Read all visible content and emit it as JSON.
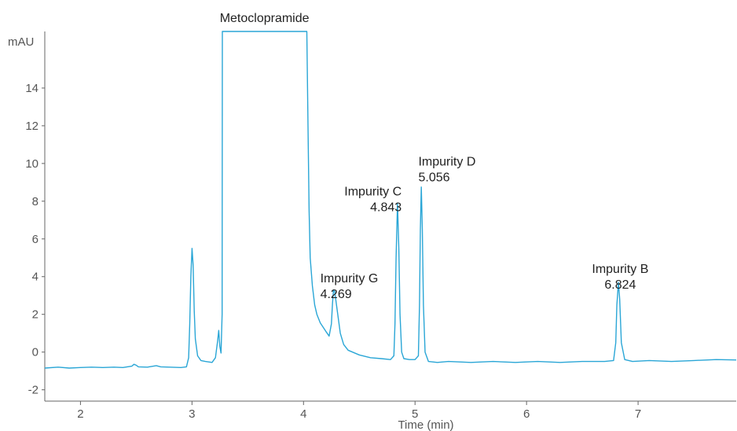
{
  "chart_data": {
    "type": "line",
    "title": "",
    "xlabel": "Time (min)",
    "ylabel": "mAU",
    "xlim": [
      1.68,
      7.88
    ],
    "ylim": [
      -2.6,
      17
    ],
    "x_ticks": [
      2,
      3,
      4,
      5,
      6,
      7
    ],
    "y_ticks": [
      -2,
      0,
      2,
      4,
      6,
      8,
      10,
      12,
      14
    ],
    "grid": false,
    "line_color": "#2aa6d6",
    "series": [
      {
        "points": [
          [
            1.68,
            -0.85
          ],
          [
            1.8,
            -0.8
          ],
          [
            1.9,
            -0.85
          ],
          [
            2.0,
            -0.82
          ],
          [
            2.1,
            -0.8
          ],
          [
            2.2,
            -0.82
          ],
          [
            2.3,
            -0.8
          ],
          [
            2.38,
            -0.82
          ],
          [
            2.42,
            -0.78
          ],
          [
            2.46,
            -0.75
          ],
          [
            2.48,
            -0.65
          ],
          [
            2.5,
            -0.7
          ],
          [
            2.52,
            -0.78
          ],
          [
            2.6,
            -0.8
          ],
          [
            2.68,
            -0.72
          ],
          [
            2.72,
            -0.78
          ],
          [
            2.8,
            -0.8
          ],
          [
            2.9,
            -0.82
          ],
          [
            2.95,
            -0.78
          ],
          [
            2.97,
            -0.3
          ],
          [
            2.98,
            1.5
          ],
          [
            2.99,
            4.0
          ],
          [
            3.0,
            5.5
          ],
          [
            3.01,
            4.6
          ],
          [
            3.02,
            2.2
          ],
          [
            3.03,
            0.7
          ],
          [
            3.05,
            -0.2
          ],
          [
            3.08,
            -0.45
          ],
          [
            3.12,
            -0.5
          ],
          [
            3.18,
            -0.55
          ],
          [
            3.21,
            -0.3
          ],
          [
            3.23,
            0.6
          ],
          [
            3.24,
            1.15
          ],
          [
            3.25,
            0.3
          ],
          [
            3.26,
            -0.05
          ],
          [
            3.27,
            2.0
          ],
          [
            3.272,
            17.0
          ],
          [
            3.82,
            17.0
          ],
          [
            3.85,
            17.0
          ],
          [
            4.03,
            17.0
          ],
          [
            4.04,
            12.0
          ],
          [
            4.05,
            7.5
          ],
          [
            4.06,
            5.0
          ],
          [
            4.08,
            3.5
          ],
          [
            4.1,
            2.5
          ],
          [
            4.12,
            2.0
          ],
          [
            4.15,
            1.55
          ],
          [
            4.2,
            1.1
          ],
          [
            4.23,
            0.85
          ],
          [
            4.25,
            1.5
          ],
          [
            4.26,
            2.6
          ],
          [
            4.269,
            3.3
          ],
          [
            4.28,
            3.2
          ],
          [
            4.3,
            2.3
          ],
          [
            4.33,
            1.0
          ],
          [
            4.36,
            0.4
          ],
          [
            4.4,
            0.1
          ],
          [
            4.5,
            -0.15
          ],
          [
            4.6,
            -0.3
          ],
          [
            4.7,
            -0.35
          ],
          [
            4.78,
            -0.4
          ],
          [
            4.81,
            -0.2
          ],
          [
            4.82,
            1.5
          ],
          [
            4.83,
            5.0
          ],
          [
            4.843,
            7.9
          ],
          [
            4.855,
            5.5
          ],
          [
            4.865,
            2.0
          ],
          [
            4.88,
            0.0
          ],
          [
            4.9,
            -0.35
          ],
          [
            4.95,
            -0.4
          ],
          [
            5.0,
            -0.4
          ],
          [
            5.03,
            -0.2
          ],
          [
            5.04,
            2.5
          ],
          [
            5.048,
            6.5
          ],
          [
            5.056,
            8.75
          ],
          [
            5.065,
            6.5
          ],
          [
            5.075,
            2.5
          ],
          [
            5.09,
            0.0
          ],
          [
            5.12,
            -0.5
          ],
          [
            5.2,
            -0.55
          ],
          [
            5.3,
            -0.5
          ],
          [
            5.5,
            -0.55
          ],
          [
            5.7,
            -0.5
          ],
          [
            5.9,
            -0.55
          ],
          [
            6.1,
            -0.5
          ],
          [
            6.3,
            -0.55
          ],
          [
            6.5,
            -0.5
          ],
          [
            6.7,
            -0.5
          ],
          [
            6.78,
            -0.45
          ],
          [
            6.8,
            0.5
          ],
          [
            6.81,
            2.5
          ],
          [
            6.824,
            3.7
          ],
          [
            6.835,
            2.8
          ],
          [
            6.85,
            0.5
          ],
          [
            6.88,
            -0.4
          ],
          [
            6.95,
            -0.5
          ],
          [
            7.1,
            -0.45
          ],
          [
            7.3,
            -0.5
          ],
          [
            7.5,
            -0.45
          ],
          [
            7.7,
            -0.4
          ],
          [
            7.88,
            -0.42
          ]
        ]
      }
    ],
    "annotations": [
      {
        "lines": [
          "Metoclopramide"
        ],
        "x": 3.65,
        "y": 17.1,
        "anchor": "middle"
      },
      {
        "lines": [
          "Impurity G",
          "4.269"
        ],
        "x": 4.15,
        "y": 3.7,
        "anchor": "start"
      },
      {
        "lines": [
          "Impurity C",
          "4.843"
        ],
        "x": 4.88,
        "y": 8.3,
        "anchor": "end"
      },
      {
        "lines": [
          "Impurity D",
          "5.056"
        ],
        "x": 5.03,
        "y": 9.9,
        "anchor": "start"
      },
      {
        "lines": [
          "Impurity B",
          "6.824"
        ],
        "x": 6.84,
        "y": 4.2,
        "anchor": "middle"
      }
    ]
  }
}
